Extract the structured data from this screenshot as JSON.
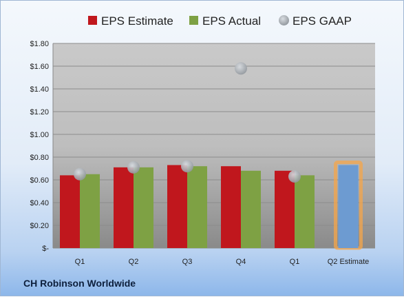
{
  "company_name": "CH Robinson Worldwide",
  "chart_data": {
    "type": "bar",
    "categories": [
      "Q1",
      "Q2",
      "Q3",
      "Q4",
      "Q1",
      "Q2 Estimate"
    ],
    "ylim": [
      0,
      1.8
    ],
    "y_ticks": [
      "$-",
      "$0.20",
      "$0.40",
      "$0.60",
      "$0.80",
      "$1.00",
      "$1.20",
      "$1.40",
      "$1.60",
      "$1.80"
    ],
    "legend_position": "top",
    "grid": true,
    "series": [
      {
        "name": "EPS Estimate",
        "type": "bar",
        "color": "#c0171d",
        "values": [
          0.64,
          0.71,
          0.73,
          0.72,
          0.68,
          null
        ]
      },
      {
        "name": "EPS Actual",
        "type": "bar",
        "color": "#7ea144",
        "values": [
          0.65,
          0.71,
          0.72,
          0.68,
          0.64,
          null
        ]
      },
      {
        "name": "EPS GAAP",
        "type": "scatter",
        "color": "#b9c2cc",
        "values": [
          0.65,
          0.71,
          0.72,
          1.58,
          0.63,
          null
        ]
      },
      {
        "name": "Q2 Estimate",
        "type": "bar",
        "color": "#6d9bd1",
        "highlight": "#f5a54a",
        "values": [
          null,
          null,
          null,
          null,
          null,
          0.73
        ]
      }
    ]
  }
}
